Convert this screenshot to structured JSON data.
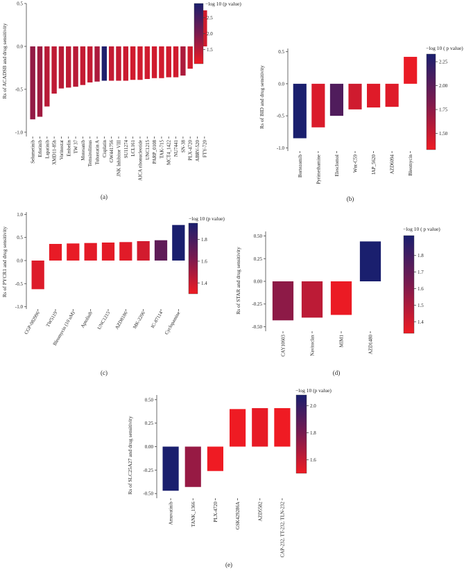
{
  "colorbar_title": "−log 10 ( p value)",
  "colorbar_title_alt": "−log 10 (p value)",
  "colors": {
    "high": "#1a1f6e",
    "mid": "#7b1a4e",
    "low": "#ef1b23"
  },
  "chart_data": [
    {
      "id": "a",
      "type": "bar",
      "panel_label": "(a)",
      "ylabel": "Rs of ACADSB and drug sensitivity",
      "ylim": [
        -1.05,
        0.5
      ],
      "yticks": [
        -1.0,
        -0.5,
        0.0,
        0.5
      ],
      "colorbar": {
        "range": [
          1.05,
          2.95
        ],
        "ticks": [
          1.5,
          2.0,
          2.5
        ]
      },
      "categories": [
        "Selumetinib",
        "Erlotinib",
        "Lapatinib",
        "XMD11-85h",
        "Vorinostat",
        "Embelin",
        "TW 37",
        "Motesanib",
        "Temsirolimus",
        "Tubastatin A",
        "Cisplatin",
        "GW441756",
        "JNK Inhibitor VIII",
        "SU11274",
        "LCL161",
        "AICA ribonucleotide",
        "UNC1215",
        "PARP_0108",
        "TAK-715",
        "MCT4_1422",
        "NU7441",
        "SN-38",
        "PLX-4720",
        "ABRV-520",
        "FTY-720"
      ],
      "values": [
        -0.85,
        -0.82,
        -0.7,
        -0.55,
        -0.49,
        -0.48,
        -0.47,
        -0.45,
        -0.42,
        -0.41,
        -0.4,
        -0.4,
        -0.4,
        -0.4,
        -0.39,
        -0.39,
        -0.38,
        -0.37,
        -0.37,
        -0.36,
        -0.36,
        -0.34,
        -0.26,
        0.41,
        0.42
      ],
      "neglog10p": [
        1.8,
        1.7,
        1.5,
        1.45,
        1.5,
        1.45,
        1.5,
        1.4,
        1.4,
        1.6,
        2.9,
        1.4,
        1.4,
        1.35,
        1.3,
        1.3,
        1.3,
        1.3,
        1.3,
        1.3,
        1.3,
        1.6,
        1.3,
        1.3,
        1.3
      ]
    },
    {
      "id": "b",
      "type": "bar",
      "panel_label": "(b)",
      "ylabel": "Rs of BID and drug sensitivity",
      "ylim": [
        -1.05,
        0.55
      ],
      "yticks": [
        -1.0,
        -0.5,
        0.0,
        0.5
      ],
      "colorbar": {
        "range": [
          1.33,
          2.33
        ],
        "ticks": [
          1.5,
          1.75,
          2.0,
          2.25
        ]
      },
      "categories": [
        "Bortezomib",
        "Pyrimethamine",
        "Elesclomol",
        "Wnt-C59",
        "IAP_5620",
        "AZD6094",
        "Bleomycin"
      ],
      "values": [
        -0.85,
        -0.68,
        -0.5,
        -0.4,
        -0.37,
        -0.36,
        0.42
      ],
      "neglog10p": [
        2.33,
        1.42,
        2.05,
        1.47,
        1.4,
        1.4,
        1.35
      ]
    },
    {
      "id": "c",
      "type": "bar",
      "panel_label": "(c)",
      "ylabel": "Rs of PYCR1 and drug sensitivity",
      "ylim": [
        -1.05,
        1.05
      ],
      "yticks": [
        -1.0,
        -0.5,
        0.0,
        0.5,
        1.0
      ],
      "colorbar": {
        "range": [
          1.3,
          1.95
        ],
        "ticks": [
          1.4,
          1.6,
          1.8
        ]
      },
      "categories": [
        "CGP-082996",
        "TW5119",
        "Bleomycin (10 uM)",
        "Aptolisib",
        "UNC1215",
        "AZD8186",
        "MK-2206",
        "IC-87114",
        "Cyclopamine"
      ],
      "values": [
        -0.62,
        0.36,
        0.37,
        0.38,
        0.39,
        0.4,
        0.42,
        0.44,
        0.77
      ],
      "neglog10p": [
        1.35,
        1.32,
        1.32,
        1.33,
        1.33,
        1.34,
        1.38,
        1.72,
        1.95
      ]
    },
    {
      "id": "d",
      "type": "bar",
      "panel_label": "(d)",
      "ylabel": "Rs of STAR and drug sensitivity",
      "ylim": [
        -0.55,
        0.55
      ],
      "yticks": [
        -0.5,
        -0.25,
        0.0,
        0.25,
        0.5
      ],
      "colorbar": {
        "range": [
          1.33,
          1.92
        ],
        "ticks": [
          1.4,
          1.5,
          1.6,
          1.7,
          1.8
        ]
      },
      "categories": [
        "CAY10603",
        "Navitoclax",
        "MIM1",
        "AZD1480"
      ],
      "values": [
        -0.43,
        -0.4,
        -0.37,
        0.44
      ],
      "neglog10p": [
        1.58,
        1.46,
        1.34,
        1.92
      ]
    },
    {
      "id": "e",
      "type": "bar",
      "panel_label": "(e)",
      "ylabel": "Rs of SLC25A27 and drug sensitivity",
      "ylim": [
        -0.55,
        0.55
      ],
      "yticks": [
        -0.5,
        -0.25,
        0.0,
        0.25,
        0.5
      ],
      "colorbar": {
        "range": [
          1.5,
          2.08
        ],
        "ticks": [
          1.6,
          1.8,
          2.0
        ]
      },
      "categories": [
        "Amuvatinib",
        "TANK_1366",
        "PLX-4720",
        "GSK429286A",
        "AZD5582",
        "CAP-232, TT-232, TLN-232"
      ],
      "values": [
        -0.47,
        -0.43,
        -0.26,
        0.4,
        0.41,
        0.41
      ],
      "neglog10p": [
        2.08,
        1.72,
        1.5,
        1.5,
        1.52,
        1.5
      ]
    }
  ]
}
